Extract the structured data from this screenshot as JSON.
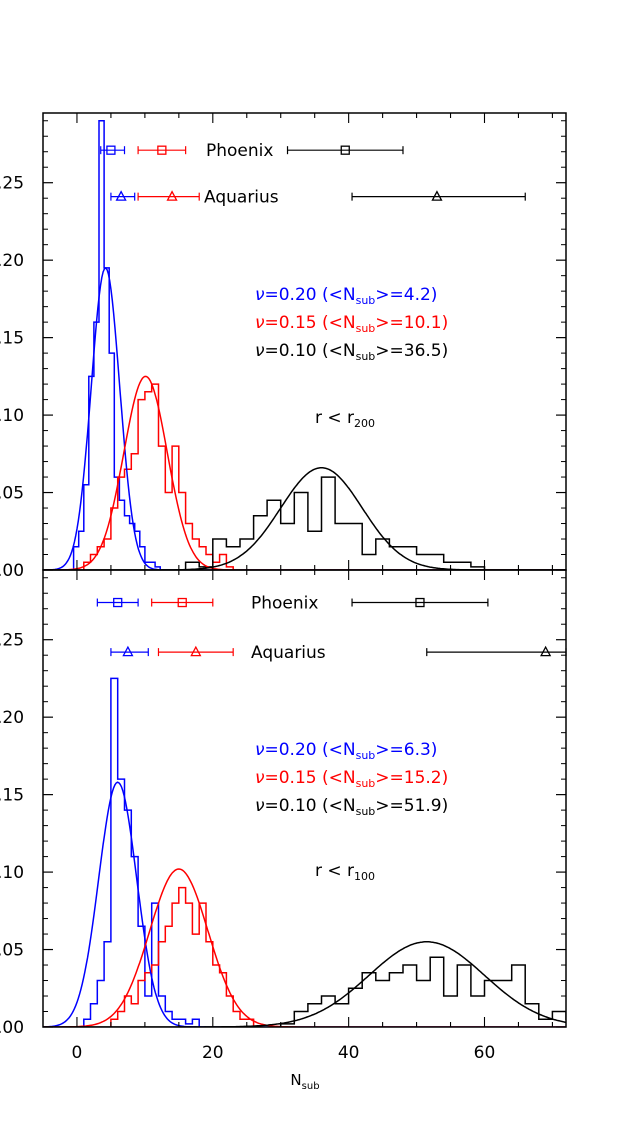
{
  "colors": {
    "nu020": "#0000ff",
    "nu015": "#ff0000",
    "nu010": "#000000",
    "axis": "#000000"
  },
  "figure": {
    "xlabel_main": "N",
    "xlabel_sub": "sub",
    "xticks": [
      0,
      20,
      40,
      60
    ],
    "xticklabels": [
      "0",
      "20",
      "40",
      "60"
    ]
  },
  "chart_data": [
    {
      "type": "histogram",
      "xlim": [
        -5,
        72
      ],
      "ylim": [
        0,
        0.295
      ],
      "yticks": [
        0.0,
        0.05,
        0.1,
        0.15,
        0.2,
        0.25
      ],
      "yticklabels": [
        ".00",
        ".05",
        ".10",
        ".15",
        ".20",
        ".25"
      ],
      "region": {
        "main": "r < r",
        "sub": "200"
      },
      "legend": [
        {
          "key": "nu020",
          "label": "ν=0.20",
          "mean_label": "(<N",
          "sub": "sub",
          "mean_value": ">=4.2)"
        },
        {
          "key": "nu015",
          "label": "ν=0.15",
          "mean_label": "(<N",
          "sub": "sub",
          "mean_value": ">=10.1)"
        },
        {
          "key": "nu010",
          "label": "ν=0.10",
          "mean_label": "(<N",
          "sub": "sub",
          "mean_value": ">=36.5)"
        }
      ],
      "reference_rows": [
        {
          "label": "Phoenix",
          "marker": "square",
          "y": 0.271,
          "points": [
            {
              "key": "nu020",
              "x": 5,
              "err": [
                3.5,
                7
              ]
            },
            {
              "key": "nu015",
              "x": 12.5,
              "err": [
                9,
                16
              ]
            },
            {
              "key": "nu010",
              "x": 39.5,
              "err": [
                31,
                48
              ]
            }
          ]
        },
        {
          "label": "Aquarius",
          "marker": "triangle",
          "y": 0.241,
          "points": [
            {
              "key": "nu020",
              "x": 6.5,
              "err": [
                5,
                8.5
              ]
            },
            {
              "key": "nu015",
              "x": 14,
              "err": [
                9,
                18
              ]
            },
            {
              "key": "nu010",
              "x": 53,
              "err": [
                40.5,
                66
              ]
            }
          ]
        }
      ],
      "series": [
        {
          "key": "nu020",
          "bin_start": -0.5,
          "bin_width": 0.75,
          "values": [
            0.015,
            0.025,
            0.055,
            0.125,
            0.16,
            0.29,
            0.195,
            0.14,
            0.06,
            0.045,
            0.035,
            0.03,
            0.025,
            0.015,
            0.005,
            0.005,
            0.002,
            0.0,
            0.0
          ]
        },
        {
          "key": "nu015",
          "bin_start": 1.0,
          "bin_width": 1.0,
          "values": [
            0.005,
            0.01,
            0.015,
            0.02,
            0.04,
            0.06,
            0.065,
            0.075,
            0.11,
            0.115,
            0.12,
            0.08,
            0.05,
            0.08,
            0.05,
            0.03,
            0.02,
            0.015,
            0.01,
            0.005,
            0.01,
            0.002,
            0.0
          ]
        },
        {
          "key": "nu010",
          "bin_start": 16.0,
          "bin_width": 2.0,
          "values": [
            0.005,
            0.002,
            0.02,
            0.015,
            0.02,
            0.035,
            0.045,
            0.03,
            0.05,
            0.025,
            0.06,
            0.03,
            0.03,
            0.01,
            0.02,
            0.015,
            0.015,
            0.01,
            0.01,
            0.005,
            0.005,
            0.002
          ]
        }
      ],
      "fits": [
        {
          "key": "nu020",
          "mean": 4.2,
          "sigma": 2.1,
          "amp": 0.195
        },
        {
          "key": "nu015",
          "mean": 10.1,
          "sigma": 3.2,
          "amp": 0.125
        },
        {
          "key": "nu010",
          "mean": 36.0,
          "sigma": 6.0,
          "amp": 0.066
        }
      ]
    },
    {
      "type": "histogram",
      "xlim": [
        -5,
        72
      ],
      "ylim": [
        0,
        0.295
      ],
      "yticks": [
        0.0,
        0.05,
        0.1,
        0.15,
        0.2,
        0.25
      ],
      "yticklabels": [
        ".00",
        ".05",
        ".10",
        ".15",
        ".20",
        ".25"
      ],
      "region": {
        "main": "r < r",
        "sub": "100"
      },
      "legend": [
        {
          "key": "nu020",
          "label": "ν=0.20",
          "mean_label": "(<N",
          "sub": "sub",
          "mean_value": ">=6.3)"
        },
        {
          "key": "nu015",
          "label": "ν=0.15",
          "mean_label": "(<N",
          "sub": "sub",
          "mean_value": ">=15.2)"
        },
        {
          "key": "nu010",
          "label": "ν=0.10",
          "mean_label": "(<N",
          "sub": "sub",
          "mean_value": ">=51.9)"
        }
      ],
      "reference_rows": [
        {
          "label": "Phoenix",
          "marker": "square",
          "y": 0.274,
          "points": [
            {
              "key": "nu020",
              "x": 6,
              "err": [
                3,
                9
              ]
            },
            {
              "key": "nu015",
              "x": 15.5,
              "err": [
                11,
                20
              ]
            },
            {
              "key": "nu010",
              "x": 50.5,
              "err": [
                40.5,
                60.5
              ]
            }
          ]
        },
        {
          "label": "Aquarius",
          "marker": "triangle",
          "y": 0.242,
          "points": [
            {
              "key": "nu020",
              "x": 7.5,
              "err": [
                5,
                10.5
              ]
            },
            {
              "key": "nu015",
              "x": 17.5,
              "err": [
                12,
                23
              ]
            },
            {
              "key": "nu010",
              "x": 69,
              "err": [
                51.5,
                72
              ]
            }
          ]
        }
      ],
      "series": [
        {
          "key": "nu020",
          "bin_start": 1.0,
          "bin_width": 1.0,
          "values": [
            0.005,
            0.015,
            0.03,
            0.055,
            0.225,
            0.16,
            0.14,
            0.11,
            0.065,
            0.02,
            0.08,
            0.02,
            0.01,
            0.005,
            0.005,
            0.002,
            0.005,
            0.0
          ]
        },
        {
          "key": "nu015",
          "bin_start": 5.0,
          "bin_width": 1.0,
          "values": [
            0.005,
            0.01,
            0.02,
            0.015,
            0.03,
            0.035,
            0.04,
            0.055,
            0.065,
            0.08,
            0.09,
            0.08,
            0.06,
            0.08,
            0.055,
            0.04,
            0.035,
            0.02,
            0.01,
            0.005,
            0.005
          ]
        },
        {
          "key": "nu010",
          "bin_start": 30.0,
          "bin_width": 2.0,
          "values": [
            0.002,
            0.01,
            0.015,
            0.02,
            0.015,
            0.025,
            0.035,
            0.03,
            0.035,
            0.04,
            0.03,
            0.045,
            0.02,
            0.04,
            0.02,
            0.03,
            0.03,
            0.04,
            0.015,
            0.005,
            0.01,
            0.005
          ]
        }
      ],
      "fits": [
        {
          "key": "nu020",
          "mean": 6.0,
          "sigma": 2.8,
          "amp": 0.158
        },
        {
          "key": "nu015",
          "mean": 15.0,
          "sigma": 4.3,
          "amp": 0.102
        },
        {
          "key": "nu010",
          "mean": 51.5,
          "sigma": 8.5,
          "amp": 0.055
        }
      ]
    }
  ]
}
